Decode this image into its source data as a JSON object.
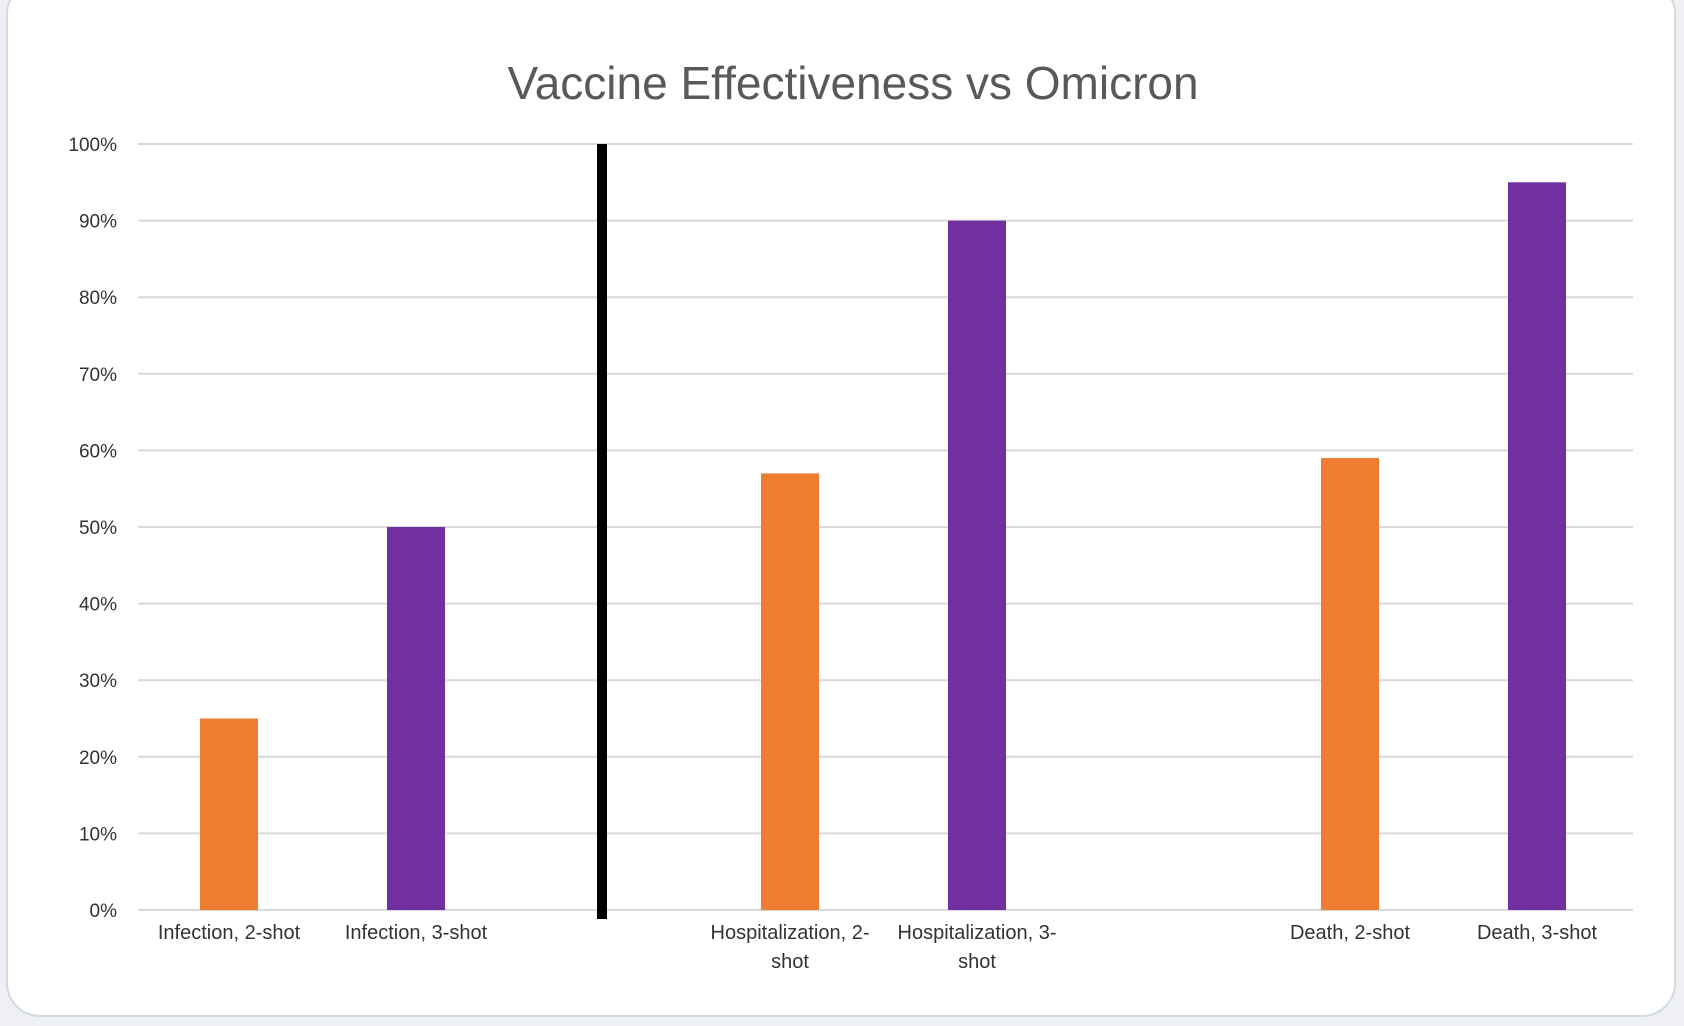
{
  "chart_data": {
    "type": "bar",
    "title": "Vaccine Effectiveness vs Omicron",
    "xlabel": "",
    "ylabel": "",
    "ylim": [
      0,
      100
    ],
    "y_tick_labels": [
      "0%",
      "10%",
      "20%",
      "30%",
      "40%",
      "50%",
      "60%",
      "70%",
      "80%",
      "90%",
      "100%"
    ],
    "categories": [
      "Infection, 2-shot",
      "Infection, 3-shot",
      "Hospitalization, 2-shot",
      "Hospitalization, 3-shot",
      "Death, 2-shot",
      "Death, 3-shot"
    ],
    "category_label_lines": [
      [
        "Infection, 2-shot"
      ],
      [
        "Infection, 3-shot"
      ],
      [
        "Hospitalization, 2-",
        "shot"
      ],
      [
        "Hospitalization, 3-",
        "shot"
      ],
      [
        "Death, 2-shot"
      ],
      [
        "Death, 3-shot"
      ]
    ],
    "values": [
      25,
      50,
      57,
      90,
      59,
      95
    ],
    "bar_colors": [
      "#ed7d31",
      "#7030a0",
      "#ed7d31",
      "#7030a0",
      "#ed7d31",
      "#7030a0"
    ],
    "grid": true,
    "divider_after_category": 1,
    "divider_color": "#000000",
    "gridline_color": "#d9d9d9"
  }
}
